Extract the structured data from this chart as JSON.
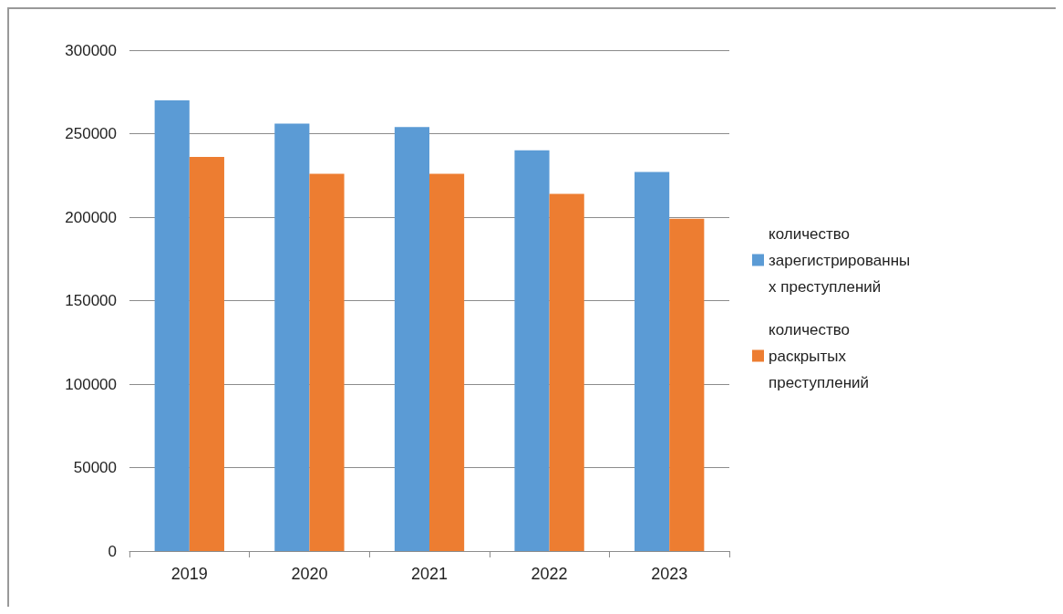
{
  "chart_data": {
    "type": "bar",
    "categories": [
      "2019",
      "2020",
      "2021",
      "2022",
      "2023"
    ],
    "series": [
      {
        "name": "количество зарегистрированных преступлений",
        "color": "#5b9bd5",
        "values": [
          270000,
          256000,
          254000,
          240000,
          227000
        ]
      },
      {
        "name": "количество раскрытых преступлений",
        "color": "#ed7d31",
        "values": [
          236000,
          226000,
          226000,
          214000,
          199000
        ]
      }
    ],
    "ylim": [
      0,
      300000
    ],
    "yticks": [
      0,
      50000,
      100000,
      150000,
      200000,
      250000,
      300000
    ],
    "grid": "y",
    "legend": "right"
  }
}
